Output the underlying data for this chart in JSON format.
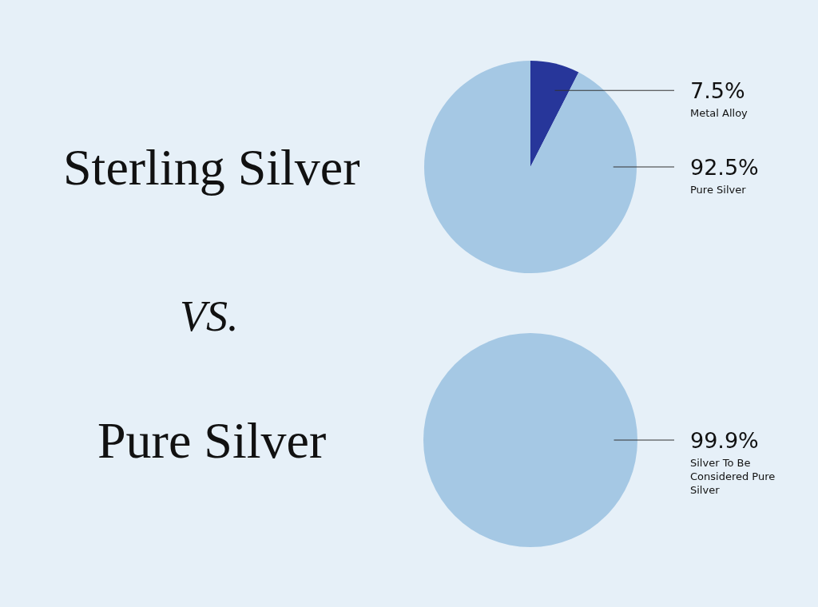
{
  "chart_data": [
    {
      "type": "pie",
      "title": "Sterling Silver",
      "categories": [
        "Metal Alloy",
        "Pure Silver"
      ],
      "values": [
        7.5,
        92.5
      ],
      "colors": [
        "#27369a",
        "#a5c8e4"
      ],
      "value_labels": [
        "7.5%",
        "92.5%"
      ],
      "annotations": [
        "VS."
      ]
    },
    {
      "type": "pie",
      "title": "Pure Silver",
      "categories": [
        "Silver To Be Considered Pure Silver"
      ],
      "values": [
        99.9
      ],
      "colors": [
        "#a5c8e4"
      ],
      "value_labels": [
        "99.9%"
      ]
    }
  ]
}
